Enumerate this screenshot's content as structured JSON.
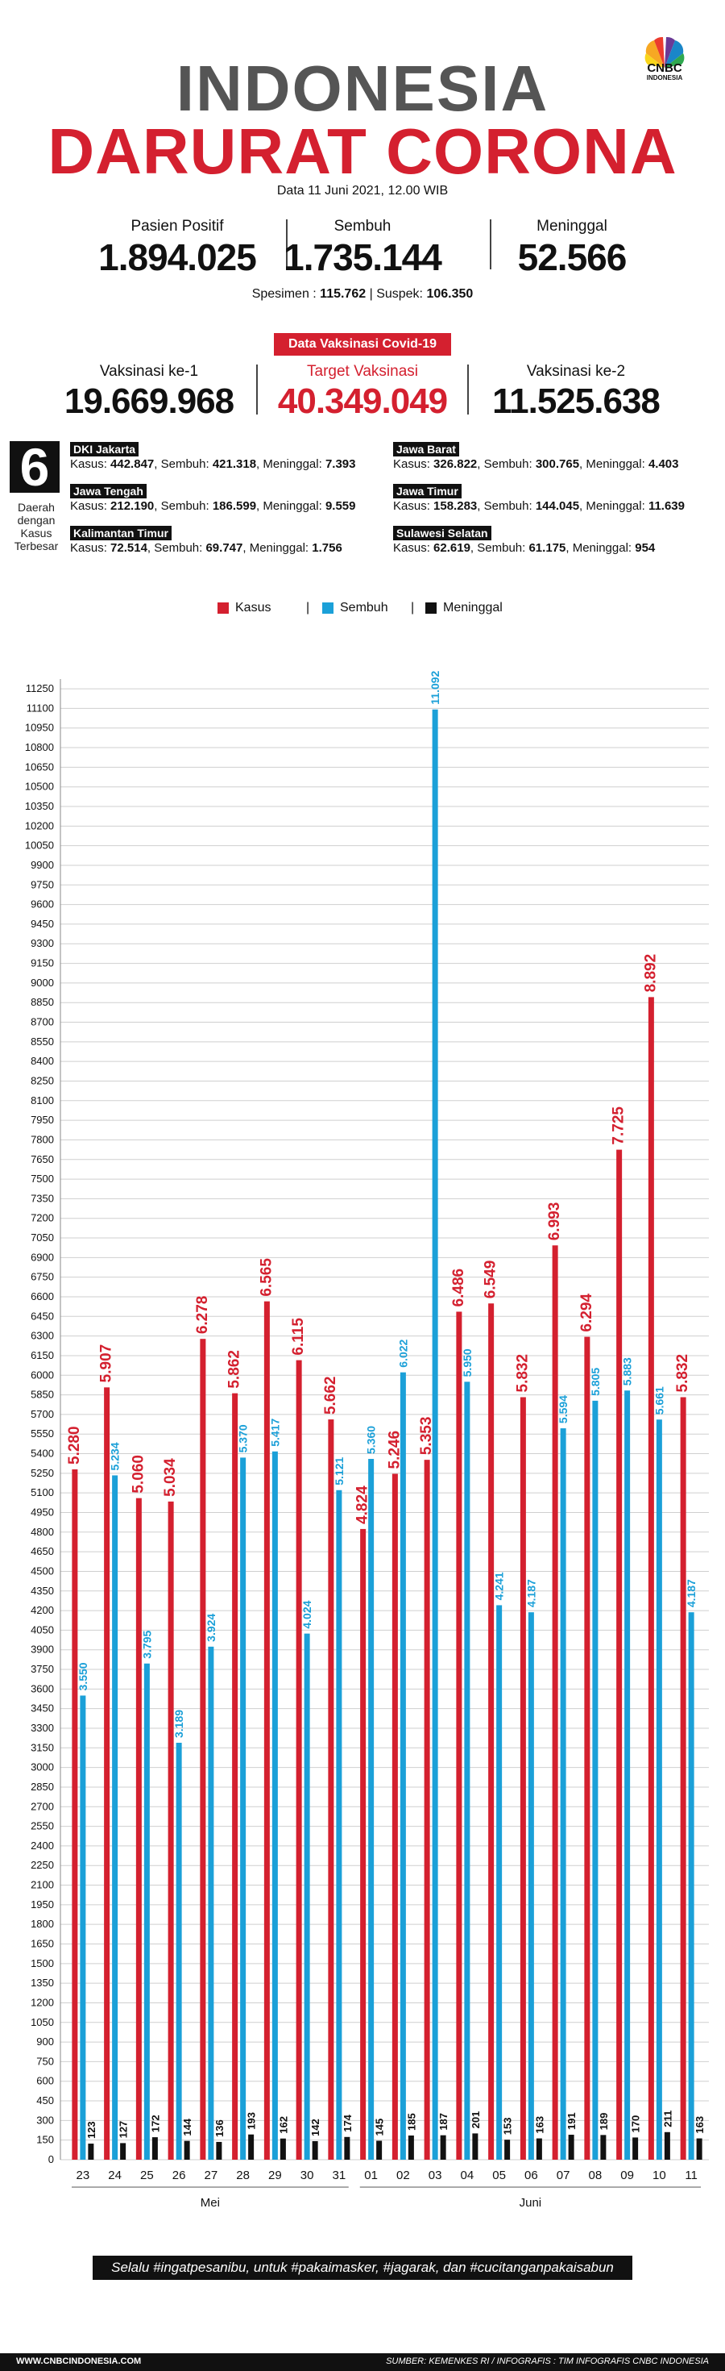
{
  "brand": {
    "logo_text": "CNBC",
    "logo_sub": "INDONESIA"
  },
  "header": {
    "title_line1": "INDONESIA",
    "title_line2": "DARURAT CORONA",
    "date": "Data 11 Juni 2021, 12.00 WIB"
  },
  "stats": [
    {
      "label": "Pasien Positif",
      "value": "1.894.025"
    },
    {
      "label": "Sembuh",
      "value": "1.735.144"
    },
    {
      "label": "Meninggal",
      "value": "52.566"
    }
  ],
  "specimen": {
    "spesimen_label": "Spesimen : ",
    "spesimen_value": "115.762",
    "sep": "|",
    "suspek_label": "Suspek: ",
    "suspek_value": "106.350"
  },
  "vaccine": {
    "badge": "Data Vaksinasi Covid-19",
    "items": [
      {
        "label": "Vaksinasi ke-1",
        "value": "19.669.968"
      },
      {
        "label": "Target Vaksinasi",
        "value": "40.349.049"
      },
      {
        "label": "Vaksinasi ke-2",
        "value": "11.525.638"
      }
    ]
  },
  "top_regions": {
    "count": "6",
    "caption": "Daerah dengan Kasus Terbesar",
    "provinces": [
      {
        "name": "DKI Jakarta",
        "kasus_label": "Kasus: ",
        "kasus": "442.847",
        "sembuh_label": ", Sembuh: ",
        "sembuh": "421.318",
        "meninggal_label": ", Meninggal: ",
        "meninggal": "7.393"
      },
      {
        "name": "Jawa Barat",
        "kasus_label": "Kasus: ",
        "kasus": "326.822",
        "sembuh_label": ", Sembuh: ",
        "sembuh": "300.765",
        "meninggal_label": ", Meninggal: ",
        "meninggal": "4.403"
      },
      {
        "name": "Jawa Tengah",
        "kasus_label": "Kasus: ",
        "kasus": "212.190",
        "sembuh_label": ", Sembuh: ",
        "sembuh": "186.599",
        "meninggal_label": ", Meninggal: ",
        "meninggal": "9.559"
      },
      {
        "name": "Jawa Timur",
        "kasus_label": "Kasus: ",
        "kasus": "158.283",
        "sembuh_label": ", Sembuh: ",
        "sembuh": "144.045",
        "meninggal_label": ", Meninggal: ",
        "meninggal": "11.639"
      },
      {
        "name": "Kalimantan Timur",
        "kasus_label": "Kasus: ",
        "kasus": "72.514",
        "sembuh_label": ", Sembuh: ",
        "sembuh": "69.747",
        "meninggal_label": ", Meninggal: ",
        "meninggal": "1.756"
      },
      {
        "name": "Sulawesi Selatan",
        "kasus_label": "Kasus: ",
        "kasus": "62.619",
        "sembuh_label": ", Sembuh: ",
        "sembuh": "61.175",
        "meninggal_label": ", Meninggal: ",
        "meninggal": "954"
      }
    ]
  },
  "chart_data": {
    "type": "bar",
    "categories": [
      "23",
      "24",
      "25",
      "26",
      "27",
      "28",
      "29",
      "30",
      "31",
      "01",
      "02",
      "03",
      "04",
      "05",
      "06",
      "07",
      "08",
      "09",
      "10",
      "11"
    ],
    "groups": [
      {
        "label": "Mei",
        "from": 0,
        "to": 8
      },
      {
        "label": "Juni",
        "from": 9,
        "to": 19
      }
    ],
    "series": [
      {
        "name": "Kasus",
        "color": "#d4202f",
        "values": [
          5280,
          5907,
          5060,
          5034,
          6278,
          5862,
          6565,
          6115,
          5662,
          4824,
          5246,
          5353,
          6486,
          6549,
          5832,
          6993,
          6294,
          7725,
          8892,
          5832
        ],
        "labels": [
          "5.280",
          "5.907",
          "5.060",
          "5.034",
          "6.278",
          "5.862",
          "6.565",
          "6.115",
          "5.662",
          "4.824",
          "5.246",
          "5.353",
          "6.486",
          "6.549",
          "5.832",
          "6.993",
          "6.294",
          "7.725",
          "8.892",
          "5.832"
        ]
      },
      {
        "name": "Sembuh",
        "color": "#1ba0d8",
        "values": [
          3550,
          5234,
          3795,
          3189,
          3924,
          5370,
          5417,
          4024,
          5121,
          5360,
          6022,
          11092,
          5950,
          4241,
          4187,
          5594,
          5805,
          5883,
          5661,
          4187
        ],
        "labels": [
          "3.550",
          "5.234",
          "3.795",
          "3.189",
          "3.924",
          "5.370",
          "5.417",
          "4.024",
          "5.121",
          "5.360",
          "6.022",
          "11.092",
          "5.950",
          "4.241",
          "4.187",
          "5.594",
          "5.805",
          "5.883",
          "5.661",
          "4.187"
        ]
      },
      {
        "name": "Meninggal",
        "color": "#111111",
        "values": [
          123,
          127,
          172,
          144,
          136,
          193,
          162,
          142,
          174,
          145,
          185,
          187,
          201,
          153,
          163,
          191,
          189,
          170,
          211,
          163
        ],
        "labels": [
          "123",
          "127",
          "172",
          "144",
          "136",
          "193",
          "162",
          "142",
          "174",
          "145",
          "185",
          "187",
          "201",
          "153",
          "163",
          "191",
          "189",
          "170",
          "211",
          "163"
        ]
      }
    ],
    "ylim": [
      0,
      11300
    ],
    "ytick_step": 150,
    "grid": true,
    "legend_position": "top-center",
    "legend_sep": "|"
  },
  "footer": {
    "tagline": "Selalu #ingatpesanibu, untuk #pakaimasker, #jagarak, dan #cucitanganpakaisabun",
    "site": "WWW.CNBCINDONESIA.COM",
    "credit": "SUMBER: KEMENKES RI / INFOGRAFIS : TIM INFOGRAFIS CNBC INDONESIA"
  }
}
